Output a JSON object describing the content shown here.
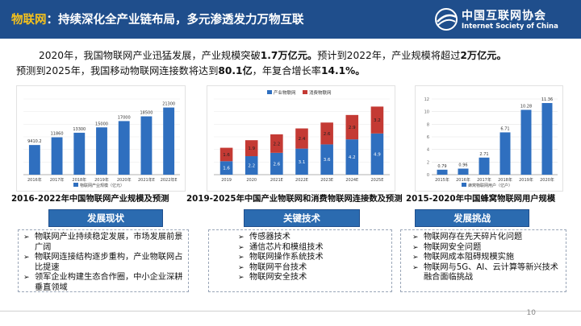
{
  "header": {
    "title_highlight": "物联网",
    "title_rest": "：持续深化全产业链布局，多元渗透发力万物互联",
    "logo_cn": "中国互联网协会",
    "logo_en": "Internet Society of China"
  },
  "intro": {
    "p1a": "2020年，我国物联网产业迅猛发展，产业规模突破",
    "p1b": "1.7万亿元。",
    "p1c": "预计到2022年，产业规模将超过",
    "p1d": "2万亿元。",
    "p2a": "预测到2025年，我国移动物联网连接数将达到",
    "p2b": "80.1亿",
    "p2c": "，年复合增长率",
    "p2d": "14.1%。"
  },
  "chart_data": [
    {
      "type": "bar",
      "legend": "物联网产业规模（亿元）",
      "categories": [
        "2016年",
        "2017年",
        "2018年",
        "2019年",
        "2020年",
        "2021年E",
        "2022年E"
      ],
      "values": [
        9410.2,
        11860,
        13300,
        15000,
        17000,
        18500,
        21300
      ],
      "value_labels": [
        "9410.2",
        "11860",
        "13300",
        "15000",
        "17000",
        "18500",
        "21300"
      ],
      "ylim": [
        0,
        24000
      ],
      "color": "#2f6fbf",
      "title": "2016-2022年中国物联网产业规模及预测"
    },
    {
      "type": "bar",
      "stacked": true,
      "categories": [
        "2019",
        "2020",
        "2021E",
        "2022E",
        "2023E",
        "2024E",
        "2025E"
      ],
      "series": [
        {
          "name": "产业物联网",
          "values": [
            1.6,
            2.2,
            2.6,
            3.1,
            3.6,
            4.2,
            4.9
          ],
          "color": "#2f6fbf"
        },
        {
          "name": "消费物联网",
          "values": [
            1.6,
            1.9,
            2.2,
            2.4,
            2.6,
            2.9,
            3.2
          ],
          "color": "#c43a34"
        }
      ],
      "ylim": [
        0,
        9
      ],
      "title": "2019-2025年中国产业物联网和消费物联网连接数及预测"
    },
    {
      "type": "bar",
      "legend": "蜂窝物联网用户（亿户）",
      "categories": [
        "2015年",
        "2016年",
        "2017年",
        "2018年",
        "2019年",
        "2020年"
      ],
      "values": [
        0.79,
        0.96,
        2.71,
        6.71,
        10.28,
        11.36
      ],
      "value_labels": [
        "0.79",
        "0.96",
        "2.71",
        "6.71",
        "10.28",
        "11.36"
      ],
      "ylim": [
        0,
        12
      ],
      "yticks": [
        0,
        2,
        4,
        6,
        8,
        10,
        12
      ],
      "color": "#2f6fbf",
      "title": "2015-2020年中国蜂窝物联网用户规模"
    }
  ],
  "pills": [
    "发展现状",
    "关键技术",
    "发展挑战"
  ],
  "boxes": {
    "status": [
      "物联网产业持续稳定发展，市场发展前景广阔",
      "物联网连接结构逐步重构，产业物联网占比提速",
      "领军企业构建生态合作圈，中小企业深耕垂直领域"
    ],
    "tech": [
      "传感器技术",
      "通信芯片和模组技术",
      "物联网操作系统技术",
      "物联网平台技术",
      "物联网安全技术"
    ],
    "challenge": [
      "物联网存在先天碎片化问题",
      "物联网安全问题",
      "物联网成本阻碍规模实施",
      "物联网与5G、AI、云计算等新兴技术融合面临挑战"
    ]
  },
  "page_number": "10",
  "colors": {
    "header": "#1f4e8c",
    "accent": "#f6c21c",
    "pill": "#2b6bb0"
  }
}
